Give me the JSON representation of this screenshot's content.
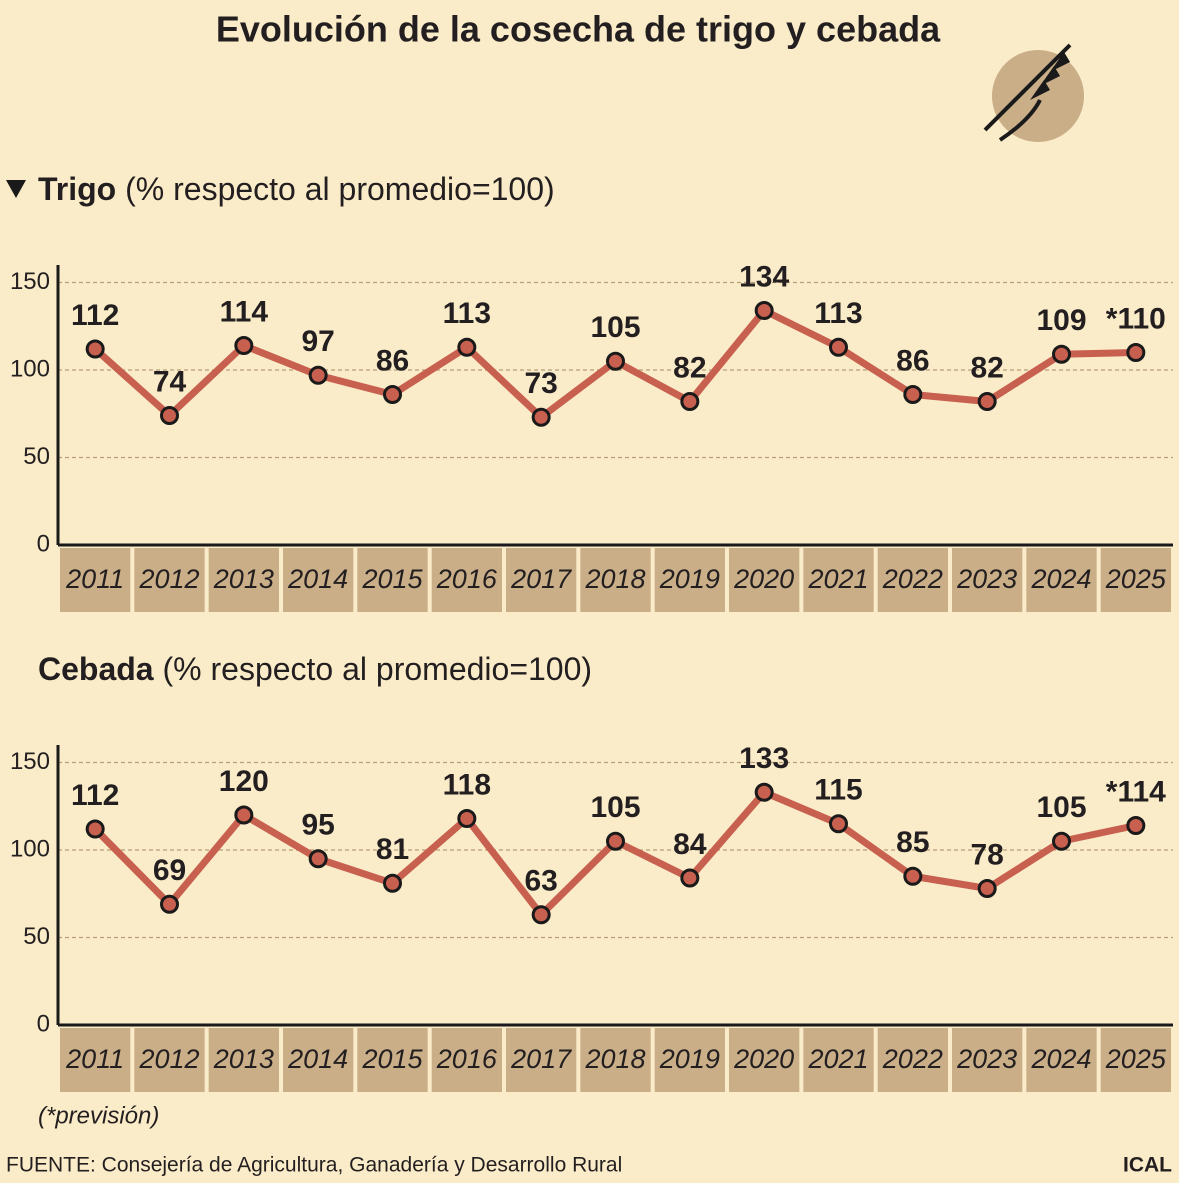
{
  "title": "Evolución de la cosecha de trigo y cebada",
  "chart_data": [
    {
      "type": "line",
      "name": "Trigo",
      "subtitle": "(% respecto al promedio=100)",
      "categories": [
        "2011",
        "2012",
        "2013",
        "2014",
        "2015",
        "2016",
        "2017",
        "2018",
        "2019",
        "2020",
        "2021",
        "2022",
        "2023",
        "2024",
        "2025"
      ],
      "values": [
        112,
        74,
        114,
        97,
        86,
        113,
        73,
        105,
        82,
        134,
        113,
        86,
        82,
        109,
        110
      ],
      "value_labels": [
        "112",
        "74",
        "114",
        "97",
        "86",
        "113",
        "73",
        "105",
        "82",
        "134",
        "113",
        "86",
        "82",
        "109",
        "*110"
      ],
      "color": "#c8604f",
      "ylim": [
        0,
        160
      ],
      "yticks": [
        0,
        50,
        100,
        150
      ],
      "grid": true
    },
    {
      "type": "line",
      "name": "Cebada",
      "subtitle": "(% respecto al promedio=100)",
      "categories": [
        "2011",
        "2012",
        "2013",
        "2014",
        "2015",
        "2016",
        "2017",
        "2018",
        "2019",
        "2020",
        "2021",
        "2022",
        "2023",
        "2024",
        "2025"
      ],
      "values": [
        112,
        69,
        120,
        95,
        81,
        118,
        63,
        105,
        84,
        133,
        115,
        85,
        78,
        105,
        114
      ],
      "value_labels": [
        "112",
        "69",
        "120",
        "95",
        "81",
        "118",
        "63",
        "105",
        "84",
        "133",
        "115",
        "85",
        "78",
        "105",
        "*114"
      ],
      "color": "#c8604f",
      "ylim": [
        0,
        160
      ],
      "yticks": [
        0,
        50,
        100,
        150
      ],
      "grid": true
    }
  ],
  "footnote": "(*previsión)",
  "source": "FUENTE: Consejería de Agricultura, Ganadería y Desarrollo Rural",
  "credit": "ICAL"
}
